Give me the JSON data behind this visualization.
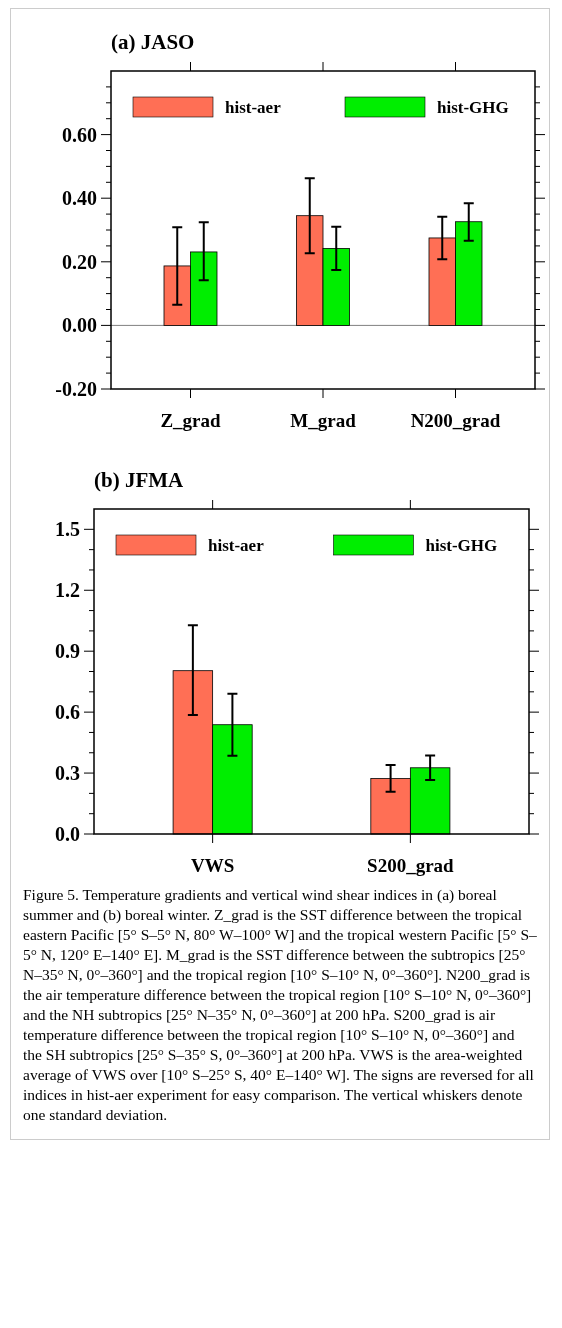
{
  "chart_data": [
    {
      "type": "bar",
      "title": "(a) JASO",
      "categories": [
        "Z_grad",
        "M_grad",
        "N200_grad"
      ],
      "series": [
        {
          "name": "hist-aer",
          "color": "#ff6f55",
          "values": [
            0.187,
            0.345,
            0.275
          ],
          "errors": [
            [
              0.065,
              0.309
            ],
            [
              0.227,
              0.463
            ],
            [
              0.208,
              0.342
            ]
          ]
        },
        {
          "name": "hist-GHG",
          "color": "#00ee00",
          "values": [
            0.231,
            0.242,
            0.326
          ],
          "errors": [
            [
              0.142,
              0.324
            ],
            [
              0.174,
              0.31
            ],
            [
              0.266,
              0.384
            ]
          ]
        }
      ],
      "ylim": [
        -0.2,
        0.8
      ],
      "yticks": [
        {
          "value": -0.2,
          "label": "-0.20"
        },
        {
          "value": -0.15,
          "label": null
        },
        {
          "value": -0.1,
          "label": null
        },
        {
          "value": -0.05,
          "label": null
        },
        {
          "value": 0,
          "label": "0.00"
        },
        {
          "value": 0.05,
          "label": null
        },
        {
          "value": 0.1,
          "label": null
        },
        {
          "value": 0.15,
          "label": null
        },
        {
          "value": 0.2,
          "label": "0.20"
        },
        {
          "value": 0.25,
          "label": null
        },
        {
          "value": 0.3,
          "label": null
        },
        {
          "value": 0.35,
          "label": null
        },
        {
          "value": 0.4,
          "label": "0.40"
        },
        {
          "value": 0.45,
          "label": null
        },
        {
          "value": 0.5,
          "label": null
        },
        {
          "value": 0.55,
          "label": null
        },
        {
          "value": 0.6,
          "label": "0.60"
        },
        {
          "value": 0.65,
          "label": null
        },
        {
          "value": 0.7,
          "label": null
        },
        {
          "value": 0.75,
          "label": null
        }
      ],
      "ref_lines": [
        {
          "axis": "y",
          "value": 0,
          "color": "#808080"
        }
      ],
      "legend": "top"
    },
    {
      "type": "bar",
      "title": "(b) JFMA",
      "categories": [
        "VWS",
        "S200_grad"
      ],
      "series": [
        {
          "name": "hist-aer",
          "color": "#ff6f55",
          "values": [
            0.804,
            0.273
          ],
          "errors": [
            [
              0.586,
              1.028
            ],
            [
              0.208,
              0.34
            ]
          ]
        },
        {
          "name": "hist-GHG",
          "color": "#00ee00",
          "values": [
            0.538,
            0.326
          ],
          "errors": [
            [
              0.385,
              0.691
            ],
            [
              0.266,
              0.386
            ]
          ]
        }
      ],
      "ylim": [
        0,
        1.6
      ],
      "yticks": [
        {
          "value": 0,
          "label": "0.0"
        },
        {
          "value": 0.1,
          "label": null
        },
        {
          "value": 0.2,
          "label": null
        },
        {
          "value": 0.3,
          "label": "0.3"
        },
        {
          "value": 0.4,
          "label": null
        },
        {
          "value": 0.5,
          "label": null
        },
        {
          "value": 0.6,
          "label": "0.6"
        },
        {
          "value": 0.7,
          "label": null
        },
        {
          "value": 0.8,
          "label": null
        },
        {
          "value": 0.9,
          "label": "0.9"
        },
        {
          "value": 1.0,
          "label": null
        },
        {
          "value": 1.1,
          "label": null
        },
        {
          "value": 1.2,
          "label": "1.2"
        },
        {
          "value": 1.3,
          "label": null
        },
        {
          "value": 1.4,
          "label": null
        },
        {
          "value": 1.5,
          "label": "1.5"
        }
      ],
      "legend": "top",
      "annotations": [
        "Figure 5. Temperature gradients and vertical wind shear indices in (a) boreal summer and (b) boreal winter. Z_grad is the SST difference between the tropical eastern Pacific [5° S–5° N, 80° W–100° W] and the tropical western Pacific [5° S–5° N, 120° E–140° E]. M_grad is the SST difference between the subtropics [25° N–35° N, 0°–360°] and the tropical region [10° S–10° N, 0°–360°]. N200_grad is the air temperature difference between the tropical region [10° S–10° N, 0°–360°] and the NH subtropics [25° N–35° N, 0°–360°] at 200 hPa. S200_grad is air temperature difference between the tropical region [10° S–10° N, 0°–360°] and the SH subtropics [25° S–35° S, 0°–360°] at 200 hPa. VWS is the area-weighted average of VWS over [10° S–25° S, 40° E–140° W]. The signs are reversed for all indices in hist-aer experiment for easy comparison. The vertical whiskers denote one standard deviation."
      ]
    }
  ]
}
